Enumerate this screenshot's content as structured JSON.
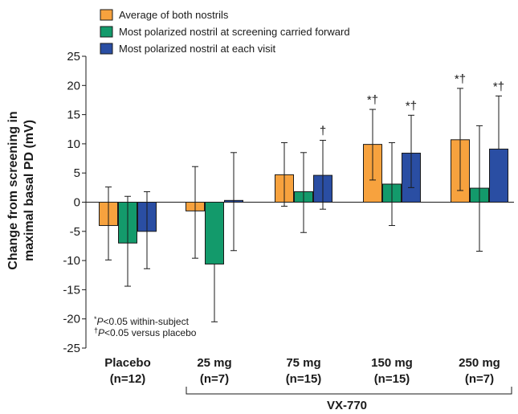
{
  "chart_data": {
    "type": "bar",
    "ylabel_line1": "Change from screening in",
    "ylabel_line2": "maximal basal PD (mV)",
    "ylim": [
      -25,
      25
    ],
    "yticks": [
      25,
      20,
      15,
      10,
      5,
      0,
      -5,
      -10,
      -15,
      -20,
      -25
    ],
    "categories": [
      {
        "name": "Placebo",
        "n": "(n=12)"
      },
      {
        "name": "25 mg",
        "n": "(n=7)"
      },
      {
        "name": "75 mg",
        "n": "(n=15)"
      },
      {
        "name": "150 mg",
        "n": "(n=15)"
      },
      {
        "name": "250 mg",
        "n": "(n=7)"
      }
    ],
    "group_label": "VX-770",
    "series": [
      {
        "name": "Average of both nostrils",
        "color": "#f7a23e",
        "values": [
          -4.0,
          -1.5,
          4.7,
          9.9,
          10.7
        ],
        "err_high": [
          2.6,
          6.1,
          10.2,
          15.9,
          19.5
        ],
        "err_low": [
          -9.9,
          -9.6,
          -0.7,
          3.8,
          2.0
        ],
        "sig": [
          "",
          "",
          "",
          "*†",
          "*†"
        ]
      },
      {
        "name": "Most polarized nostril at screening carried forward",
        "color": "#139a6b",
        "values": [
          -7.0,
          -10.6,
          1.8,
          3.1,
          2.4
        ],
        "err_high": [
          1.0,
          null,
          8.5,
          10.2,
          13.1
        ],
        "err_low": [
          -14.4,
          -20.5,
          -5.2,
          -4.0,
          -8.4
        ],
        "sig": [
          "",
          "",
          "",
          "",
          ""
        ]
      },
      {
        "name": "Most polarized nostril at each visit",
        "color": "#2a4ea3",
        "values": [
          -5.0,
          0.3,
          4.6,
          8.4,
          9.1
        ],
        "err_high": [
          1.8,
          8.5,
          10.6,
          14.9,
          18.2
        ],
        "err_low": [
          -11.4,
          -8.3,
          -1.2,
          2.5,
          null
        ],
        "sig": [
          "",
          "",
          "†",
          "*†",
          "*†"
        ]
      }
    ],
    "footnotes": [
      {
        "sup": "*",
        "italic": "P",
        "rest": "<0.05 within-subject"
      },
      {
        "sup": "†",
        "italic": "P",
        "rest": "<0.05 versus placebo"
      }
    ]
  }
}
